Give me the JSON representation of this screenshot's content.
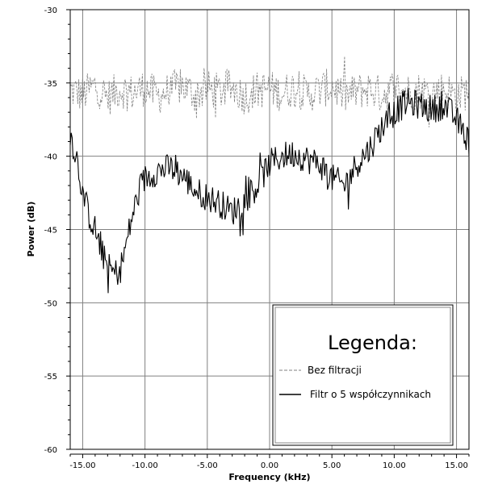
{
  "chart_data": {
    "type": "line",
    "xlabel": "Frequency (kHz)",
    "ylabel": "Power (dB)",
    "xlim": [
      -16,
      16
    ],
    "ylim": [
      -60,
      -30
    ],
    "xticks": [
      -15,
      -10,
      -5,
      0,
      5,
      10,
      15
    ],
    "xtick_labels": [
      "-15.00",
      "-10.00",
      "-5.00",
      "0.00",
      "5.00",
      "10.00",
      "15.00"
    ],
    "yticks": [
      -30,
      -35,
      -40,
      -45,
      -50,
      -55,
      -60
    ],
    "ytick_labels": [
      "-30",
      "-35",
      "-40",
      "-45",
      "-50",
      "-55",
      "-60"
    ],
    "grid": true,
    "legend": {
      "title": "Legenda:",
      "placement": "bottom-right",
      "entries": [
        "Bez filtracji",
        "Filtr o 5 współczynnikach"
      ]
    },
    "series": [
      {
        "name": "Bez filtracji",
        "style": "dashed",
        "color": "#808080",
        "x": [
          -16,
          -15,
          -14,
          -13,
          -12,
          -11,
          -10,
          -9,
          -8,
          -7,
          -6,
          -5,
          -4,
          -3,
          -2,
          -1,
          0,
          1,
          2,
          3,
          4,
          5,
          6,
          7,
          8,
          9,
          10,
          11,
          12,
          13,
          14,
          15,
          16
        ],
        "y": [
          -35.5,
          -35.8,
          -35.2,
          -36.0,
          -35.4,
          -35.7,
          -35.3,
          -35.9,
          -35.5,
          -35.2,
          -35.8,
          -35.4,
          -35.6,
          -35.3,
          -35.9,
          -35.5,
          -35.4,
          -35.7,
          -35.3,
          -35.8,
          -35.5,
          -35.2,
          -35.9,
          -35.6,
          -35.4,
          -35.8,
          -35.3,
          -35.6,
          -35.5,
          -35.7,
          -35.4,
          -35.9,
          -35.5
        ]
      },
      {
        "name": "Filtr o 5 współczynnikach",
        "style": "solid",
        "color": "#000000",
        "x": [
          -16,
          -15.5,
          -15,
          -14.5,
          -14,
          -13.5,
          -13,
          -12.5,
          -12,
          -11.5,
          -11,
          -10.5,
          -10,
          -9,
          -8,
          -7,
          -6,
          -5,
          -4,
          -3,
          -2,
          -1,
          0,
          1,
          2,
          3,
          4,
          5,
          6,
          7,
          8,
          9,
          10,
          11,
          12,
          13,
          14,
          15,
          16
        ],
        "y": [
          -38.5,
          -40.0,
          -42.5,
          -44.0,
          -45.0,
          -46.5,
          -47.5,
          -48.0,
          -47.8,
          -46.0,
          -44.0,
          -42.5,
          -41.5,
          -41.0,
          -40.8,
          -41.3,
          -42.3,
          -42.8,
          -43.2,
          -43.8,
          -43.0,
          -42.0,
          -40.5,
          -40.0,
          -39.8,
          -40.2,
          -40.5,
          -41.5,
          -42.0,
          -40.5,
          -39.5,
          -38.0,
          -37.0,
          -36.3,
          -36.5,
          -36.8,
          -36.5,
          -37.5,
          -39.0
        ]
      }
    ]
  }
}
